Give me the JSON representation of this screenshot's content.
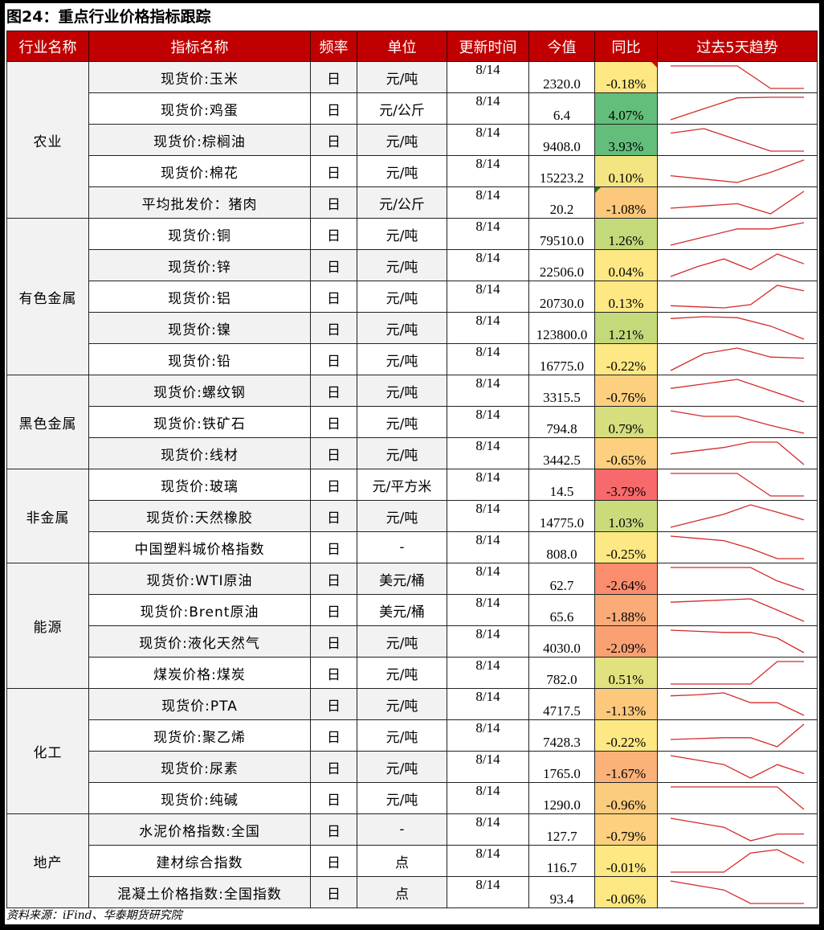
{
  "title": "图24：重点行业价格指标跟踪",
  "headers": {
    "industry": "行业名称",
    "indicator": "指标名称",
    "frequency": "频率",
    "unit": "单位",
    "update_time": "更新时间",
    "current_value": "今值",
    "yoy": "同比",
    "trend": "过去5天趋势"
  },
  "colors": {
    "header_bg": "#c00000",
    "header_text": "#ffffff",
    "sparkline": "#d42a2a",
    "yoy_scale": {
      "strong_green": "#63be7b",
      "light_green": "#c4d97a",
      "yellow": "#fde883",
      "light_orange": "#fcd07f",
      "orange": "#fba876",
      "deep_orange": "#f98b6d",
      "red": "#f8696b"
    }
  },
  "groups": [
    {
      "industry": "农业",
      "rows": [
        {
          "name": "现货价:玉米",
          "freq": "日",
          "unit": "元/吨",
          "update": "8/14",
          "value": "2320.0",
          "yoy": "-0.18%",
          "yoy_color": "#fde883",
          "flag": "red",
          "trend": [
            3,
            3,
            3,
            1,
            1
          ]
        },
        {
          "name": "现货价:鸡蛋",
          "freq": "日",
          "unit": "元/公斤",
          "update": "8/14",
          "value": "6.4",
          "yoy": "4.07%",
          "yoy_color": "#63be7b",
          "trend": [
            1,
            2,
            3,
            3.05,
            3.05
          ]
        },
        {
          "name": "现货价:棕榈油",
          "freq": "日",
          "unit": "元/吨",
          "update": "8/14",
          "value": "9408.0",
          "yoy": "3.93%",
          "yoy_color": "#63be7b",
          "trend": [
            2.6,
            3,
            2,
            1,
            1
          ]
        },
        {
          "name": "现货价:棉花",
          "freq": "日",
          "unit": "元/吨",
          "update": "8/14",
          "value": "15223.2",
          "yoy": "0.10%",
          "yoy_color": "#f3e582",
          "trend": [
            1.6,
            1.3,
            1,
            1.9,
            3
          ]
        },
        {
          "name": "平均批发价：猪肉",
          "freq": "日",
          "unit": "元/公斤",
          "update": "8/14",
          "value": "20.2",
          "yoy": "-1.08%",
          "yoy_color": "#fcc87c",
          "flag": "green",
          "trend": [
            1.5,
            1.7,
            1.9,
            1,
            3
          ]
        }
      ]
    },
    {
      "industry": "有色金属",
      "rows": [
        {
          "name": "现货价:铜",
          "freq": "日",
          "unit": "元/吨",
          "update": "8/14",
          "value": "79510.0",
          "yoy": "1.26%",
          "yoy_color": "#c4d97a",
          "trend": [
            1,
            1.9,
            2.8,
            2.8,
            3.5
          ]
        },
        {
          "name": "现货价:锌",
          "freq": "日",
          "unit": "元/吨",
          "update": "8/14",
          "value": "22506.0",
          "yoy": "0.04%",
          "yoy_color": "#fde883",
          "trend": [
            1,
            2,
            2.8,
            1.7,
            3.3,
            2.3
          ]
        },
        {
          "name": "现货价:铝",
          "freq": "日",
          "unit": "元/吨",
          "update": "8/14",
          "value": "20730.0",
          "yoy": "0.13%",
          "yoy_color": "#fde883",
          "trend": [
            1.3,
            1.2,
            1.1,
            1.4,
            3.2,
            2.7
          ]
        },
        {
          "name": "现货价:镍",
          "freq": "日",
          "unit": "元/吨",
          "update": "8/14",
          "value": "123800.0",
          "yoy": "1.21%",
          "yoy_color": "#c4d97a",
          "trend": [
            3.2,
            3.4,
            3.3,
            2.4,
            1
          ]
        },
        {
          "name": "现货价:铅",
          "freq": "日",
          "unit": "元/吨",
          "update": "8/14",
          "value": "16775.0",
          "yoy": "-0.22%",
          "yoy_color": "#fde883",
          "trend": [
            1,
            2.5,
            3,
            2.2,
            2.1
          ]
        }
      ]
    },
    {
      "industry": "黑色金属",
      "rows": [
        {
          "name": "现货价:螺纹钢",
          "freq": "日",
          "unit": "元/吨",
          "update": "8/14",
          "value": "3315.5",
          "yoy": "-0.76%",
          "yoy_color": "#fcd07f",
          "trend": [
            2.2,
            2.6,
            3,
            2,
            1
          ]
        },
        {
          "name": "现货价:铁矿石",
          "freq": "日",
          "unit": "元/吨",
          "update": "8/14",
          "value": "794.8",
          "yoy": "0.79%",
          "yoy_color": "#d6de7e",
          "trend": [
            3,
            2.5,
            2.5,
            1.7,
            1
          ]
        },
        {
          "name": "现货价:线材",
          "freq": "日",
          "unit": "元/吨",
          "update": "8/14",
          "value": "3442.5",
          "yoy": "-0.65%",
          "yoy_color": "#fcd07f",
          "trend": [
            2,
            2.3,
            2.6,
            3.1,
            3.1,
            1
          ]
        }
      ]
    },
    {
      "industry": "非金属",
      "rows": [
        {
          "name": "现货价:玻璃",
          "freq": "日",
          "unit": "元/平方米",
          "update": "8/14",
          "value": "14.5",
          "yoy": "-3.79%",
          "yoy_color": "#f8696b",
          "trend": [
            3,
            3,
            3,
            1,
            1
          ]
        },
        {
          "name": "现货价:天然橡胶",
          "freq": "日",
          "unit": "元/吨",
          "update": "8/14",
          "value": "14775.0",
          "yoy": "1.03%",
          "yoy_color": "#cbdb7c",
          "trend": [
            1,
            1.7,
            2.4,
            3.4,
            2.6,
            1.8
          ]
        },
        {
          "name": "中国塑料城价格指数",
          "freq": "日",
          "unit": "-",
          "update": "8/14",
          "value": "808.0",
          "yoy": "-0.25%",
          "yoy_color": "#fde883",
          "trend": [
            3,
            2.8,
            2.6,
            1.9,
            1,
            1
          ]
        }
      ]
    },
    {
      "industry": "能源",
      "rows": [
        {
          "name": "现货价:WTI原油",
          "freq": "日",
          "unit": "美元/桶",
          "update": "8/14",
          "value": "62.7",
          "yoy": "-2.64%",
          "yoy_color": "#f98d6e",
          "trend": [
            3,
            3,
            3,
            3,
            1.8,
            1
          ]
        },
        {
          "name": "现货价:Brent原油",
          "freq": "日",
          "unit": "美元/桶",
          "update": "8/14",
          "value": "65.6",
          "yoy": "-1.88%",
          "yoy_color": "#fbab77",
          "trend": [
            2.7,
            2.8,
            2.9,
            3,
            2,
            1
          ]
        },
        {
          "name": "现货价:液化天然气",
          "freq": "日",
          "unit": "元/吨",
          "update": "8/14",
          "value": "4030.0",
          "yoy": "-2.09%",
          "yoy_color": "#faa174",
          "trend": [
            3,
            2.9,
            2.8,
            2.8,
            2.3,
            1
          ]
        },
        {
          "name": "煤炭价格:煤炭",
          "freq": "日",
          "unit": "元/吨",
          "update": "8/14",
          "value": "782.0",
          "yoy": "0.51%",
          "yoy_color": "#e1e27f",
          "trend": [
            1,
            1,
            1,
            1,
            3,
            3
          ]
        }
      ]
    },
    {
      "industry": "化工",
      "rows": [
        {
          "name": "现货价:PTA",
          "freq": "日",
          "unit": "元/吨",
          "update": "8/14",
          "value": "4717.5",
          "yoy": "-1.13%",
          "yoy_color": "#fcc87c",
          "trend": [
            3,
            3.1,
            3.3,
            2.3,
            2.3,
            1
          ]
        },
        {
          "name": "现货价:聚乙烯",
          "freq": "日",
          "unit": "元/吨",
          "update": "8/14",
          "value": "7428.3",
          "yoy": "-0.22%",
          "yoy_color": "#fde883",
          "trend": [
            1.8,
            1.9,
            2,
            2,
            1,
            3.5
          ]
        },
        {
          "name": "现货价:尿素",
          "freq": "日",
          "unit": "元/吨",
          "update": "8/14",
          "value": "1765.0",
          "yoy": "-1.67%",
          "yoy_color": "#fbb178",
          "trend": [
            3,
            2.6,
            2.2,
            1,
            2.2,
            1.4
          ]
        },
        {
          "name": "现货价:纯碱",
          "freq": "日",
          "unit": "元/吨",
          "update": "8/14",
          "value": "1290.0",
          "yoy": "-0.96%",
          "yoy_color": "#fccc7e",
          "trend": [
            3,
            3,
            3,
            3,
            3,
            1
          ]
        }
      ]
    },
    {
      "industry": "地产",
      "rows": [
        {
          "name": "水泥价格指数:全国",
          "freq": "日",
          "unit": "-",
          "update": "8/14",
          "value": "127.7",
          "yoy": "-0.79%",
          "yoy_color": "#fcd07f",
          "trend": [
            3,
            2.6,
            2.2,
            1,
            1.6,
            1.6
          ]
        },
        {
          "name": "建材综合指数",
          "freq": "日",
          "unit": "点",
          "update": "8/14",
          "value": "116.7",
          "yoy": "-0.01%",
          "yoy_color": "#fde883",
          "trend": [
            1,
            1,
            1,
            2.7,
            3,
            1.8
          ]
        },
        {
          "name": "混凝土价格指数:全国指数",
          "freq": "日",
          "unit": "点",
          "update": "8/14",
          "value": "93.4",
          "yoy": "-0.06%",
          "yoy_color": "#fde883",
          "trend": [
            3,
            2.6,
            2.2,
            1,
            1,
            1
          ]
        }
      ]
    }
  ],
  "source": "资料来源：iFind、华泰期货研究院"
}
